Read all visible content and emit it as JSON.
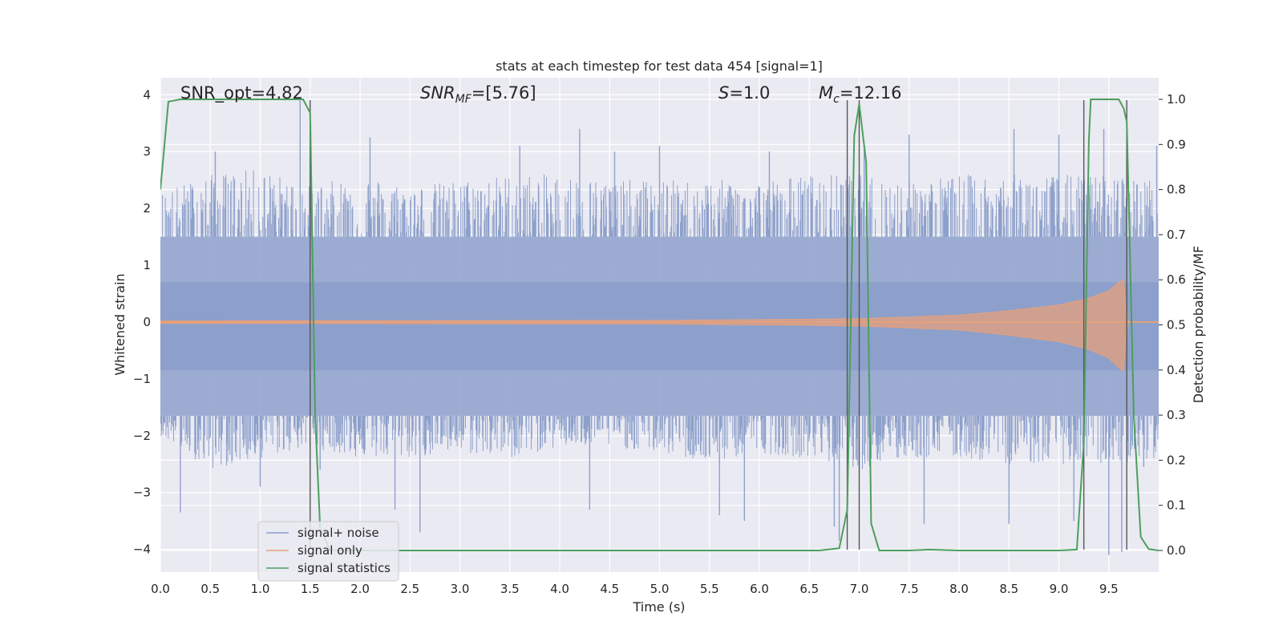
{
  "chart_data": {
    "type": "line",
    "title": "stats at each timestep for test data 454 [signal=1]",
    "xlabel": "Time (s)",
    "ylabel": "Whitened strain",
    "ylabel_right": "Detection probability/MF",
    "xlim": [
      0.0,
      10.0
    ],
    "ylim": [
      -4.4,
      4.3
    ],
    "ylim_right": [
      -0.048,
      1.048
    ],
    "x_ticks": [
      0.0,
      0.5,
      1.0,
      1.5,
      2.0,
      2.5,
      3.0,
      3.5,
      4.0,
      4.5,
      5.0,
      5.5,
      6.0,
      6.5,
      7.0,
      7.5,
      8.0,
      8.5,
      9.0,
      9.5
    ],
    "x_tick_labels": [
      "0.0",
      "0.5",
      "1.0",
      "1.5",
      "2.0",
      "2.5",
      "3.0",
      "3.5",
      "4.0",
      "4.5",
      "5.0",
      "5.5",
      "6.0",
      "6.5",
      "7.0",
      "7.5",
      "8.0",
      "8.5",
      "9.0",
      "9.5"
    ],
    "y_ticks": [
      4,
      3,
      2,
      1,
      0,
      -1,
      -2,
      -3,
      -4
    ],
    "y_tick_labels": [
      "4",
      "3",
      "2",
      "1",
      "0",
      "−1",
      "−2",
      "−3",
      "−4"
    ],
    "y_right_ticks": [
      1.0,
      0.9,
      0.8,
      0.7,
      0.6,
      0.5,
      0.4,
      0.3,
      0.2,
      0.1,
      0.0
    ],
    "y_right_tick_labels": [
      "1.0",
      "0.9",
      "0.8",
      "0.7",
      "0.6",
      "0.5",
      "0.4",
      "0.3",
      "0.2",
      "0.1",
      "0.0"
    ],
    "grid": true,
    "legend_position": "lower-left",
    "annotations": {
      "snr_opt": "SNR_opt=4.82",
      "snr_mf_prefix": "SNR",
      "snr_mf_sub": "MF",
      "snr_mf_suffix": "=[5.76]",
      "s_prefix": "S",
      "s_suffix": "=1.0",
      "mc_prefix": "M",
      "mc_sub": "c",
      "mc_suffix": "=12.16"
    },
    "vertical_lines_x": [
      1.5,
      6.88,
      7.0,
      9.25,
      9.68
    ],
    "series": [
      {
        "name": "signal+ noise",
        "color": "#8da0cb",
        "kind": "noise",
        "band_y": [
          -1.65,
          1.5
        ],
        "inner_band_y": [
          -0.85,
          0.7
        ],
        "envelope_upper": [
          [
            0.0,
            2.3
          ],
          [
            0.5,
            2.6
          ],
          [
            1.0,
            2.7
          ],
          [
            1.5,
            2.4
          ],
          [
            2.0,
            2.6
          ],
          [
            2.5,
            2.4
          ],
          [
            3.0,
            2.5
          ],
          [
            3.5,
            2.6
          ],
          [
            4.0,
            2.6
          ],
          [
            4.5,
            2.5
          ],
          [
            5.0,
            2.5
          ],
          [
            5.5,
            2.5
          ],
          [
            6.0,
            2.5
          ],
          [
            6.5,
            2.6
          ],
          [
            7.0,
            2.6
          ],
          [
            7.5,
            2.5
          ],
          [
            8.0,
            2.6
          ],
          [
            8.5,
            2.6
          ],
          [
            9.0,
            2.6
          ],
          [
            9.5,
            2.6
          ],
          [
            10.0,
            2.5
          ]
        ],
        "envelope_lower": [
          [
            0.0,
            -2.0
          ],
          [
            0.5,
            -2.6
          ],
          [
            1.0,
            -2.4
          ],
          [
            1.5,
            -2.2
          ],
          [
            2.0,
            -2.4
          ],
          [
            2.5,
            -2.4
          ],
          [
            3.0,
            -2.3
          ],
          [
            3.5,
            -2.4
          ],
          [
            4.0,
            -2.2
          ],
          [
            4.5,
            -2.2
          ],
          [
            5.0,
            -2.3
          ],
          [
            5.5,
            -2.5
          ],
          [
            6.0,
            -2.3
          ],
          [
            6.5,
            -2.4
          ],
          [
            7.0,
            -2.6
          ],
          [
            7.5,
            -2.4
          ],
          [
            8.0,
            -2.4
          ],
          [
            8.5,
            -2.5
          ],
          [
            9.0,
            -2.5
          ],
          [
            9.5,
            -2.5
          ],
          [
            10.0,
            -2.4
          ]
        ],
        "spikes": [
          [
            0.2,
            -3.35
          ],
          [
            0.55,
            3.0
          ],
          [
            1.0,
            -2.9
          ],
          [
            1.4,
            3.9
          ],
          [
            1.6,
            -2.6
          ],
          [
            2.1,
            3.25
          ],
          [
            2.35,
            -3.3
          ],
          [
            2.6,
            -3.7
          ],
          [
            3.6,
            3.1
          ],
          [
            4.2,
            3.4
          ],
          [
            4.3,
            -3.3
          ],
          [
            4.55,
            3.0
          ],
          [
            5.0,
            3.1
          ],
          [
            5.6,
            -3.4
          ],
          [
            5.85,
            -3.5
          ],
          [
            6.1,
            3.0
          ],
          [
            6.75,
            -3.6
          ],
          [
            6.8,
            -3.85
          ],
          [
            7.05,
            3.1
          ],
          [
            7.5,
            3.3
          ],
          [
            7.65,
            -3.55
          ],
          [
            8.5,
            -3.55
          ],
          [
            8.55,
            3.4
          ],
          [
            9.0,
            3.3
          ],
          [
            9.15,
            -3.5
          ],
          [
            9.45,
            3.4
          ],
          [
            9.5,
            -4.1
          ],
          [
            9.63,
            -4.05
          ],
          [
            9.85,
            -2.55
          ],
          [
            9.98,
            3.1
          ]
        ]
      },
      {
        "name": "signal only",
        "color": "#e5a07c",
        "kind": "chirp",
        "amplitude_envelope": [
          [
            0.0,
            0.02
          ],
          [
            5.0,
            0.03
          ],
          [
            6.5,
            0.05
          ],
          [
            7.0,
            0.06
          ],
          [
            8.0,
            0.12
          ],
          [
            8.5,
            0.2
          ],
          [
            9.0,
            0.3
          ],
          [
            9.3,
            0.42
          ],
          [
            9.5,
            0.55
          ],
          [
            9.6,
            0.7
          ],
          [
            9.65,
            0.75
          ],
          [
            9.68,
            0.0
          ],
          [
            10.0,
            0.0
          ]
        ]
      },
      {
        "name": "signal statistics",
        "color": "#4c9f5d",
        "axis": "right",
        "x": [
          0.0,
          0.08,
          0.2,
          0.5,
          1.0,
          1.35,
          1.43,
          1.5,
          1.55,
          1.6,
          1.7,
          2.5,
          4.0,
          5.0,
          6.0,
          6.6,
          6.8,
          6.88,
          6.95,
          7.0,
          7.07,
          7.12,
          7.2,
          7.5,
          7.7,
          8.0,
          8.5,
          9.0,
          9.18,
          9.25,
          9.3,
          9.32,
          9.6,
          9.65,
          9.68,
          9.75,
          9.82,
          9.9,
          10.0
        ],
        "y": [
          0.8,
          0.995,
          1.0,
          1.0,
          1.0,
          1.0,
          1.0,
          0.97,
          0.3,
          0.05,
          0.0,
          0.0,
          0.0,
          0.0,
          0.0,
          0.0,
          0.005,
          0.09,
          0.92,
          0.99,
          0.86,
          0.06,
          0.0,
          0.0,
          0.002,
          0.0,
          0.0,
          0.0,
          0.002,
          0.24,
          0.91,
          1.0,
          1.0,
          0.98,
          0.95,
          0.3,
          0.03,
          0.003,
          0.0
        ]
      }
    ]
  }
}
